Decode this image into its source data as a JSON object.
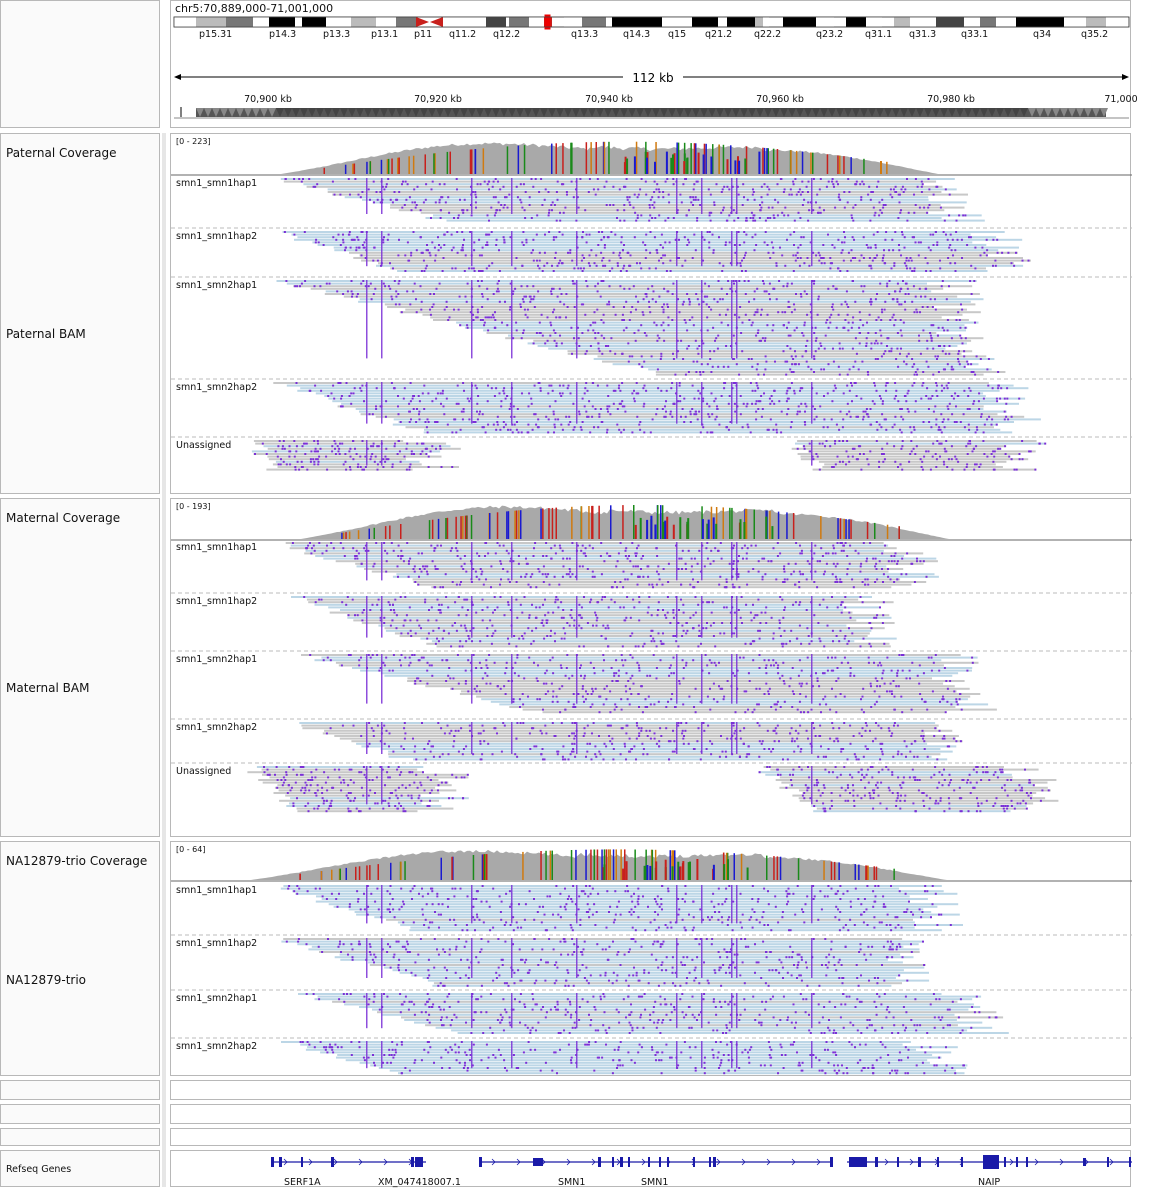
{
  "header": {
    "locus": "chr5:70,889,000-71,001,000",
    "span_label": "112 kb",
    "bands": [
      "p15.31",
      "p14.3",
      "p13.3",
      "p13.1",
      "p11",
      "q11.2",
      "q12.2",
      "q13.3",
      "q14.3",
      "q15",
      "q21.2",
      "q22.2",
      "q23.2",
      "q31.1",
      "q31.3",
      "q33.1",
      "q34",
      "q35.2"
    ],
    "ruler_ticks": [
      "70,900 kb",
      "70,920 kb",
      "70,940 kb",
      "70,960 kb",
      "70,980 kb",
      "71,000"
    ]
  },
  "tracks": [
    {
      "coverage_name": "Paternal Coverage",
      "bam_name": "Paternal BAM",
      "range": "[0 - 223]",
      "groups": [
        "smn1_smn1hap1",
        "smn1_smn1hap2",
        "smn1_smn2hap1",
        "smn1_smn2hap2",
        "Unassigned"
      ]
    },
    {
      "coverage_name": "Maternal Coverage",
      "bam_name": "Maternal BAM",
      "range": "[0 - 193]",
      "groups": [
        "smn1_smn1hap1",
        "smn1_smn1hap2",
        "smn1_smn2hap1",
        "smn1_smn2hap2",
        "Unassigned"
      ]
    },
    {
      "coverage_name": "NA12879-trio Coverage",
      "bam_name": "NA12879-trio",
      "range": "[0 - 64]",
      "groups": [
        "smn1_smn1hap1",
        "smn1_smn1hap2",
        "smn1_smn2hap1",
        "smn1_smn2hap2"
      ]
    }
  ],
  "genes": {
    "track_name": "Refseq Genes",
    "labels": [
      "SERF1A",
      "XM_047418007.1",
      "SMN1",
      "SMN1",
      "NAIP"
    ]
  },
  "colors": {
    "read_blue": "#bcd6e6",
    "read_gray": "#c8c8c8",
    "mismatch": "#7a2fd6",
    "coverage": "#a9a9a9",
    "gene": "#1a1aa8",
    "centromere": "#c8201c"
  }
}
